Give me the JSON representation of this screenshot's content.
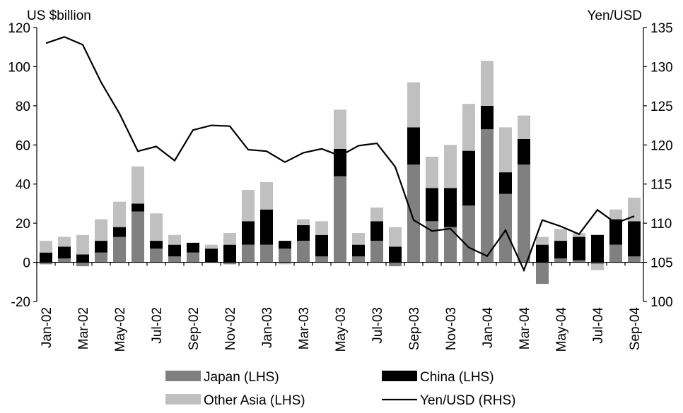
{
  "chart_data": {
    "type": "bar",
    "stacked": true,
    "categories": [
      "Jan-02",
      "Feb-02",
      "Mar-02",
      "Apr-02",
      "May-02",
      "Jun-02",
      "Jul-02",
      "Aug-02",
      "Sep-02",
      "Oct-02",
      "Nov-02",
      "Dec-02",
      "Jan-03",
      "Feb-03",
      "Mar-03",
      "Apr-03",
      "May-03",
      "Jun-03",
      "Jul-03",
      "Aug-03",
      "Sep-03",
      "Oct-03",
      "Nov-03",
      "Dec-03",
      "Jan-04",
      "Feb-04",
      "Mar-04",
      "Apr-04",
      "May-04",
      "Jun-04",
      "Jul-04",
      "Aug-04",
      "Sep-04"
    ],
    "x_tick_labels": [
      "Jan-02",
      "Mar-02",
      "May-02",
      "Jul-02",
      "Sep-02",
      "Nov-02",
      "Jan-03",
      "Mar-03",
      "May-03",
      "Jul-03",
      "Sep-03",
      "Nov-03",
      "Jan-04",
      "Mar-04",
      "May-04",
      "Jul-04",
      "Sep-04"
    ],
    "series": [
      {
        "name": "Japan (LHS)",
        "axis": "left",
        "color": "#808080",
        "values": [
          -1,
          2,
          -2,
          5,
          13,
          26,
          7,
          3,
          5,
          0,
          -1,
          9,
          9,
          7,
          11,
          3,
          44,
          3,
          11,
          -2,
          50,
          21,
          18,
          29,
          68,
          35,
          50,
          -11,
          2,
          1,
          -1,
          9,
          3
        ]
      },
      {
        "name": "China (LHS)",
        "axis": "left",
        "color": "#000000",
        "values": [
          5,
          6,
          4,
          6,
          5,
          4,
          4,
          6,
          5,
          7,
          9,
          12,
          18,
          4,
          8,
          11,
          14,
          6,
          10,
          8,
          19,
          17,
          20,
          28,
          12,
          11,
          13,
          9,
          9,
          12,
          14,
          13,
          18
        ]
      },
      {
        "name": "Other Asia (LHS)",
        "axis": "left",
        "color": "#c0c0c0",
        "values": [
          6,
          5,
          10,
          11,
          13,
          19,
          14,
          5,
          0,
          2,
          6,
          16,
          14,
          -1,
          3,
          7,
          20,
          6,
          7,
          10,
          23,
          16,
          22,
          24,
          23,
          23,
          12,
          4,
          6,
          2,
          -3,
          5,
          12
        ]
      },
      {
        "name": "Yen/USD (RHS)",
        "axis": "right",
        "type": "line",
        "color": "#000000",
        "values": [
          133,
          133.8,
          132.8,
          128,
          124,
          119.2,
          119.8,
          118,
          121.9,
          122.5,
          122.4,
          119.4,
          119.2,
          117.8,
          119,
          119.5,
          118.6,
          119.9,
          120.2,
          117.2,
          110.4,
          109,
          109.3,
          106.9,
          105.8,
          109.1,
          104,
          110.4,
          109.6,
          108.6,
          111.7,
          110,
          110.9
        ]
      }
    ],
    "ylabel_left": "US $billion",
    "ylabel_right": "Yen/USD",
    "ylim_left": [
      -20,
      120
    ],
    "ylim_right": [
      100,
      135
    ],
    "yticks_left": [
      -20,
      0,
      20,
      40,
      60,
      80,
      100,
      120
    ],
    "yticks_right": [
      100,
      105,
      110,
      115,
      120,
      125,
      130,
      135
    ],
    "grid": false,
    "legend_position": "bottom"
  }
}
